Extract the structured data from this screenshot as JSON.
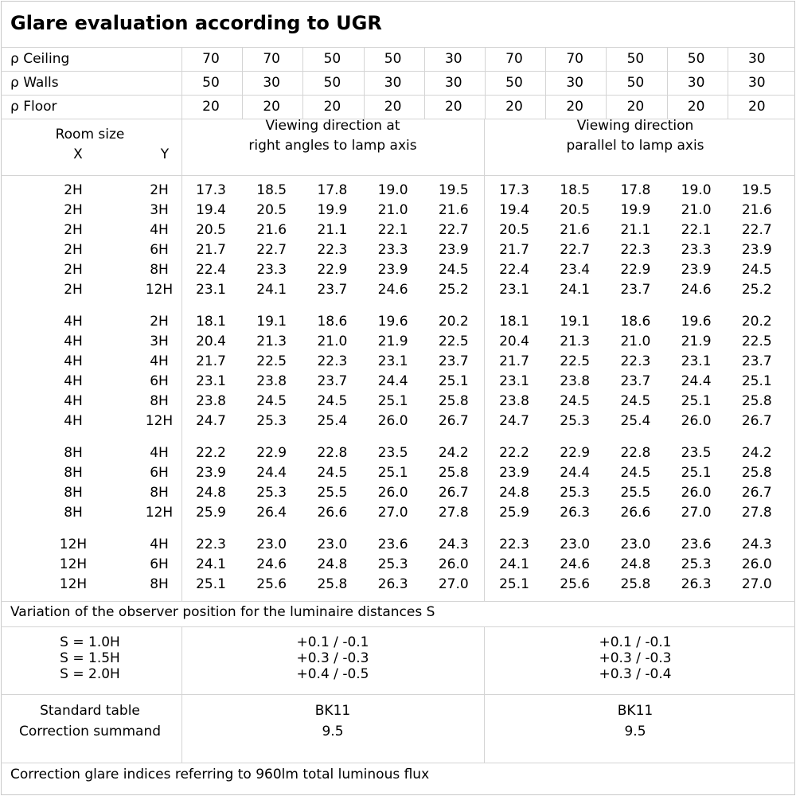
{
  "title": "Glare evaluation according to UGR",
  "reflectance": [
    {
      "label": "ρ Ceiling",
      "values": [
        "70",
        "70",
        "50",
        "50",
        "30",
        "70",
        "70",
        "50",
        "50",
        "30"
      ]
    },
    {
      "label": "ρ Walls",
      "values": [
        "50",
        "30",
        "50",
        "30",
        "30",
        "50",
        "30",
        "50",
        "30",
        "30"
      ]
    },
    {
      "label": "ρ Floor",
      "values": [
        "20",
        "20",
        "20",
        "20",
        "20",
        "20",
        "20",
        "20",
        "20",
        "20"
      ]
    }
  ],
  "room_size": {
    "label": "Room size",
    "x_label": "X",
    "y_label": "Y"
  },
  "viewing_directions": [
    {
      "line1": "Viewing direction at",
      "line2": "right angles to lamp axis"
    },
    {
      "line1": "Viewing direction",
      "line2": "parallel to lamp axis"
    }
  ],
  "groups": [
    {
      "rows": [
        {
          "x": "2H",
          "y": "2H",
          "values": [
            "17.3",
            "18.5",
            "17.8",
            "19.0",
            "19.5",
            "17.3",
            "18.5",
            "17.8",
            "19.0",
            "19.5"
          ]
        },
        {
          "x": "2H",
          "y": "3H",
          "values": [
            "19.4",
            "20.5",
            "19.9",
            "21.0",
            "21.6",
            "19.4",
            "20.5",
            "19.9",
            "21.0",
            "21.6"
          ]
        },
        {
          "x": "2H",
          "y": "4H",
          "values": [
            "20.5",
            "21.6",
            "21.1",
            "22.1",
            "22.7",
            "20.5",
            "21.6",
            "21.1",
            "22.1",
            "22.7"
          ]
        },
        {
          "x": "2H",
          "y": "6H",
          "values": [
            "21.7",
            "22.7",
            "22.3",
            "23.3",
            "23.9",
            "21.7",
            "22.7",
            "22.3",
            "23.3",
            "23.9"
          ]
        },
        {
          "x": "2H",
          "y": "8H",
          "values": [
            "22.4",
            "23.3",
            "22.9",
            "23.9",
            "24.5",
            "22.4",
            "23.4",
            "22.9",
            "23.9",
            "24.5"
          ]
        },
        {
          "x": "2H",
          "y": "12H",
          "values": [
            "23.1",
            "24.1",
            "23.7",
            "24.6",
            "25.2",
            "23.1",
            "24.1",
            "23.7",
            "24.6",
            "25.2"
          ]
        }
      ]
    },
    {
      "rows": [
        {
          "x": "4H",
          "y": "2H",
          "values": [
            "18.1",
            "19.1",
            "18.6",
            "19.6",
            "20.2",
            "18.1",
            "19.1",
            "18.6",
            "19.6",
            "20.2"
          ]
        },
        {
          "x": "4H",
          "y": "3H",
          "values": [
            "20.4",
            "21.3",
            "21.0",
            "21.9",
            "22.5",
            "20.4",
            "21.3",
            "21.0",
            "21.9",
            "22.5"
          ]
        },
        {
          "x": "4H",
          "y": "4H",
          "values": [
            "21.7",
            "22.5",
            "22.3",
            "23.1",
            "23.7",
            "21.7",
            "22.5",
            "22.3",
            "23.1",
            "23.7"
          ]
        },
        {
          "x": "4H",
          "y": "6H",
          "values": [
            "23.1",
            "23.8",
            "23.7",
            "24.4",
            "25.1",
            "23.1",
            "23.8",
            "23.7",
            "24.4",
            "25.1"
          ]
        },
        {
          "x": "4H",
          "y": "8H",
          "values": [
            "23.8",
            "24.5",
            "24.5",
            "25.1",
            "25.8",
            "23.8",
            "24.5",
            "24.5",
            "25.1",
            "25.8"
          ]
        },
        {
          "x": "4H",
          "y": "12H",
          "values": [
            "24.7",
            "25.3",
            "25.4",
            "26.0",
            "26.7",
            "24.7",
            "25.3",
            "25.4",
            "26.0",
            "26.7"
          ]
        }
      ]
    },
    {
      "rows": [
        {
          "x": "8H",
          "y": "4H",
          "values": [
            "22.2",
            "22.9",
            "22.8",
            "23.5",
            "24.2",
            "22.2",
            "22.9",
            "22.8",
            "23.5",
            "24.2"
          ]
        },
        {
          "x": "8H",
          "y": "6H",
          "values": [
            "23.9",
            "24.4",
            "24.5",
            "25.1",
            "25.8",
            "23.9",
            "24.4",
            "24.5",
            "25.1",
            "25.8"
          ]
        },
        {
          "x": "8H",
          "y": "8H",
          "values": [
            "24.8",
            "25.3",
            "25.5",
            "26.0",
            "26.7",
            "24.8",
            "25.3",
            "25.5",
            "26.0",
            "26.7"
          ]
        },
        {
          "x": "8H",
          "y": "12H",
          "values": [
            "25.9",
            "26.4",
            "26.6",
            "27.0",
            "27.8",
            "25.9",
            "26.3",
            "26.6",
            "27.0",
            "27.8"
          ]
        }
      ]
    },
    {
      "rows": [
        {
          "x": "12H",
          "y": "4H",
          "values": [
            "22.3",
            "23.0",
            "23.0",
            "23.6",
            "24.3",
            "22.3",
            "23.0",
            "23.0",
            "23.6",
            "24.3"
          ]
        },
        {
          "x": "12H",
          "y": "6H",
          "values": [
            "24.1",
            "24.6",
            "24.8",
            "25.3",
            "26.0",
            "24.1",
            "24.6",
            "24.8",
            "25.3",
            "26.0"
          ]
        },
        {
          "x": "12H",
          "y": "8H",
          "values": [
            "25.1",
            "25.6",
            "25.8",
            "26.3",
            "27.0",
            "25.1",
            "25.6",
            "25.8",
            "26.3",
            "27.0"
          ]
        }
      ]
    }
  ],
  "variation": {
    "heading": "Variation of the observer position for the luminaire distances S",
    "rows": [
      {
        "label": "S = 1.0H",
        "right_angles": "+0.1 / -0.1",
        "parallel": "+0.1 / -0.1"
      },
      {
        "label": "S = 1.5H",
        "right_angles": "+0.3 / -0.3",
        "parallel": "+0.3 / -0.3"
      },
      {
        "label": "S = 2.0H",
        "right_angles": "+0.4 / -0.5",
        "parallel": "+0.3 / -0.4"
      }
    ]
  },
  "standard": {
    "table_label": "Standard table",
    "summand_label": "Correction summand",
    "right_angles": {
      "table": "BK11",
      "summand": "9.5"
    },
    "parallel": {
      "table": "BK11",
      "summand": "9.5"
    }
  },
  "footer": "Correction glare indices referring to 960lm total luminous flux"
}
